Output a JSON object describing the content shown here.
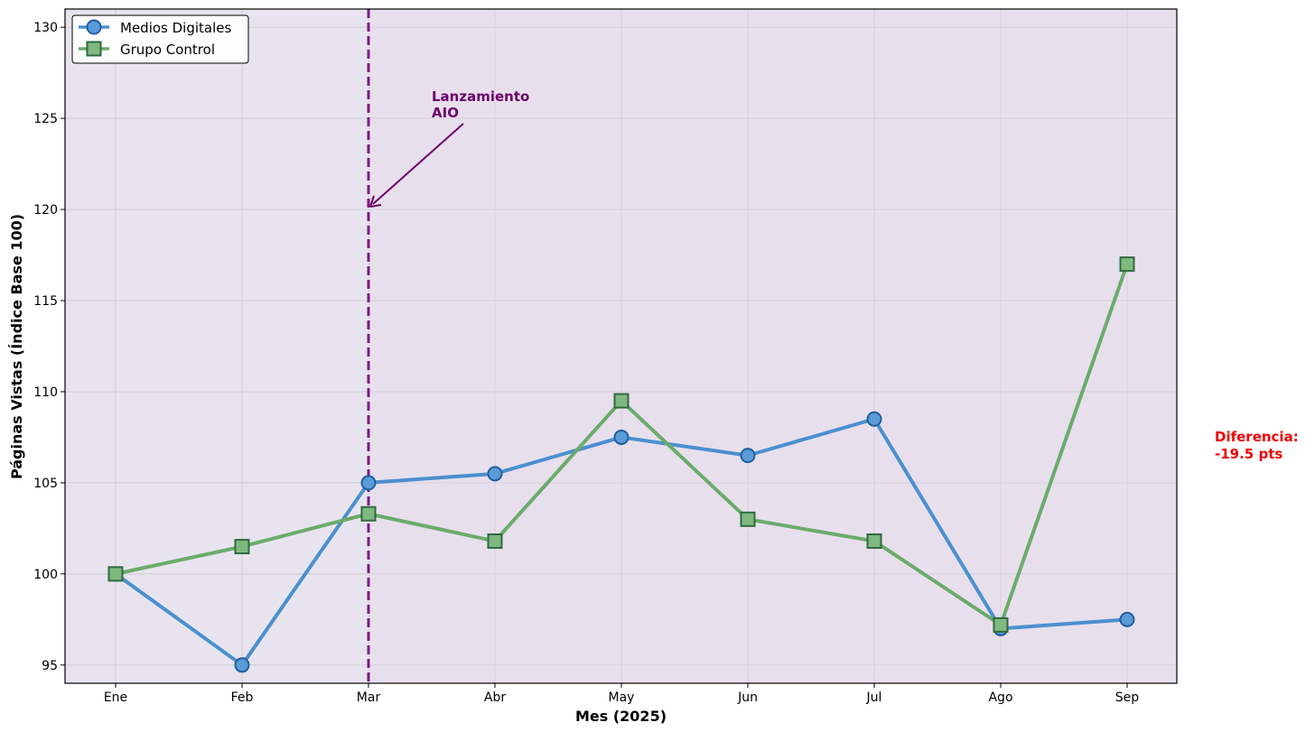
{
  "chart_data": {
    "type": "line",
    "categories": [
      "Ene",
      "Feb",
      "Mar",
      "Abr",
      "May",
      "Jun",
      "Jul",
      "Ago",
      "Sep"
    ],
    "series": [
      {
        "name": "Medios Digitales",
        "values": [
          100,
          95,
          105,
          105.5,
          107.5,
          106.5,
          108.5,
          97,
          97.5
        ],
        "color": "#4a90d0",
        "marker": "circle"
      },
      {
        "name": "Grupo Control",
        "values": [
          100,
          101.5,
          103.3,
          101.8,
          109.5,
          103,
          101.8,
          97.2,
          117
        ],
        "color": "#6bab6b",
        "marker": "square"
      }
    ],
    "xlabel": "Mes (2025)",
    "ylabel": "Páginas Vistas (Índice Base 100)",
    "ylim": [
      94,
      131
    ],
    "yticks": [
      95,
      100,
      105,
      110,
      115,
      120,
      125,
      130
    ],
    "grid": true,
    "legend_position": "top-left",
    "vline": {
      "category": "Mar",
      "color": "#7b1a86",
      "style": "dashed"
    },
    "annotation": {
      "lines": [
        "Lanzamiento",
        "AIO"
      ],
      "points_to": {
        "category": "Mar",
        "y": 120
      },
      "color": "#6b006b"
    },
    "side_note": {
      "lines": [
        "Diferencia:",
        "-19.5 pts"
      ],
      "color": "#ee0000"
    },
    "background_color": "#e8e4ef"
  }
}
